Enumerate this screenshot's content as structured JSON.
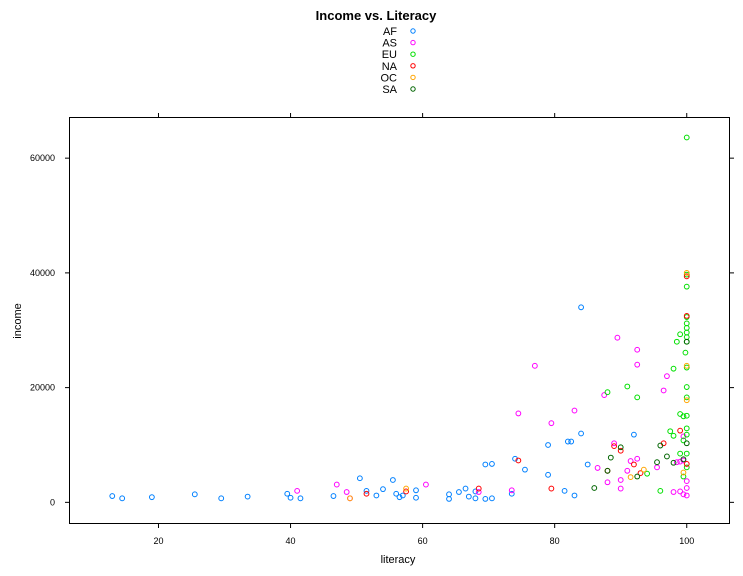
{
  "chart_data": {
    "type": "scatter",
    "title": "Income vs. Literacy",
    "xlabel": "literacy",
    "ylabel": "income",
    "xlim": [
      6.6,
      106.4
    ],
    "ylim": [
      -3600,
      67000
    ],
    "xticks": [
      20,
      40,
      60,
      80,
      100
    ],
    "yticks": [
      0,
      20000,
      40000,
      60000
    ],
    "grid": false,
    "legend_position": "top-center",
    "series": [
      {
        "name": "AF",
        "color": "#0080ff",
        "points": [
          [
            13,
            1100
          ],
          [
            14.5,
            700
          ],
          [
            19,
            900
          ],
          [
            25.5,
            1400
          ],
          [
            29.5,
            700
          ],
          [
            33.5,
            1000
          ],
          [
            39.5,
            1500
          ],
          [
            40,
            800
          ],
          [
            41.5,
            700
          ],
          [
            46.5,
            1100
          ],
          [
            50.5,
            4200
          ],
          [
            51.5,
            2000
          ],
          [
            53,
            1200
          ],
          [
            54,
            2300
          ],
          [
            55.5,
            3900
          ],
          [
            56,
            1500
          ],
          [
            56.5,
            900
          ],
          [
            57,
            1200
          ],
          [
            59,
            800
          ],
          [
            59,
            2100
          ],
          [
            64,
            600
          ],
          [
            64,
            1400
          ],
          [
            65.5,
            1800
          ],
          [
            66.5,
            2400
          ],
          [
            67,
            1000
          ],
          [
            68,
            700
          ],
          [
            68,
            1900
          ],
          [
            69.5,
            600
          ],
          [
            69.5,
            6600
          ],
          [
            70.5,
            6700
          ],
          [
            70.5,
            700
          ],
          [
            73.5,
            1500
          ],
          [
            74,
            7600
          ],
          [
            75.5,
            5700
          ],
          [
            79,
            4800
          ],
          [
            79,
            10000
          ],
          [
            81.5,
            2000
          ],
          [
            82,
            10600
          ],
          [
            82.5,
            10600
          ],
          [
            83,
            1200
          ],
          [
            84,
            12000
          ],
          [
            84,
            34000
          ],
          [
            85,
            6600
          ],
          [
            92,
            11800
          ]
        ]
      },
      {
        "name": "AS",
        "color": "#ff00ff",
        "points": [
          [
            41,
            2000
          ],
          [
            47,
            3100
          ],
          [
            48.5,
            1800
          ],
          [
            49,
            700
          ],
          [
            60.5,
            3100
          ],
          [
            68.5,
            1800
          ],
          [
            73.5,
            2100
          ],
          [
            74.5,
            15500
          ],
          [
            77,
            23800
          ],
          [
            79.5,
            13800
          ],
          [
            83,
            16000
          ],
          [
            86.5,
            6000
          ],
          [
            87.5,
            18700
          ],
          [
            89.5,
            28700
          ],
          [
            92.5,
            26600
          ],
          [
            92.5,
            24000
          ],
          [
            88,
            3500
          ],
          [
            89,
            10300
          ],
          [
            90,
            3900
          ],
          [
            90,
            2400
          ],
          [
            91,
            5500
          ],
          [
            91.5,
            7200
          ],
          [
            92.5,
            7600
          ],
          [
            95.5,
            6100
          ],
          [
            96.5,
            19500
          ],
          [
            97,
            22000
          ],
          [
            98,
            1800
          ],
          [
            98.5,
            7000
          ],
          [
            99,
            1900
          ],
          [
            99,
            7100
          ],
          [
            99.5,
            11500
          ],
          [
            99.5,
            1400
          ],
          [
            99.5,
            7300
          ],
          [
            100,
            1200
          ],
          [
            100,
            2500
          ],
          [
            100,
            3700
          ]
        ]
      },
      {
        "name": "EU",
        "color": "#00e000",
        "points": [
          [
            88,
            19200
          ],
          [
            91,
            20200
          ],
          [
            92.5,
            18300
          ],
          [
            97.5,
            12400
          ],
          [
            98,
            23300
          ],
          [
            98.5,
            28000
          ],
          [
            99,
            8500
          ],
          [
            99,
            29300
          ],
          [
            99,
            15400
          ],
          [
            99.5,
            15000
          ],
          [
            99.5,
            4500
          ],
          [
            99.5,
            10800
          ],
          [
            100,
            8500
          ],
          [
            100,
            6100
          ],
          [
            100,
            11800
          ],
          [
            100,
            12900
          ],
          [
            100,
            15100
          ],
          [
            100,
            18300
          ],
          [
            100,
            20100
          ],
          [
            100,
            23500
          ],
          [
            100,
            28000
          ],
          [
            100,
            28800
          ],
          [
            100,
            29600
          ],
          [
            100,
            30400
          ],
          [
            100,
            31200
          ],
          [
            100,
            32300
          ],
          [
            100,
            37600
          ],
          [
            100,
            39700
          ],
          [
            100,
            63600
          ],
          [
            99.8,
            26100
          ],
          [
            96,
            2000
          ],
          [
            98,
            11600
          ],
          [
            94,
            5000
          ]
        ]
      },
      {
        "name": "NA",
        "color": "#ff0000",
        "points": [
          [
            51.5,
            1500
          ],
          [
            57.5,
            1900
          ],
          [
            68.5,
            2400
          ],
          [
            74.5,
            7300
          ],
          [
            79.5,
            2400
          ],
          [
            88,
            5500
          ],
          [
            89,
            9800
          ],
          [
            90,
            9000
          ],
          [
            92,
            6600
          ],
          [
            93,
            5100
          ],
          [
            96.5,
            10300
          ],
          [
            99,
            12500
          ],
          [
            100,
            6700
          ],
          [
            100,
            39400
          ],
          [
            100,
            32500
          ]
        ]
      },
      {
        "name": "OC",
        "color": "#ffa500",
        "points": [
          [
            49,
            700
          ],
          [
            57.5,
            2400
          ],
          [
            91.5,
            4400
          ],
          [
            93.5,
            5700
          ],
          [
            99.5,
            5200
          ],
          [
            100,
            17800
          ],
          [
            100,
            23800
          ],
          [
            100,
            40000
          ]
        ]
      },
      {
        "name": "SA",
        "color": "#006400",
        "points": [
          [
            86,
            2500
          ],
          [
            88,
            5500
          ],
          [
            88.5,
            7800
          ],
          [
            90,
            9600
          ],
          [
            92.5,
            4500
          ],
          [
            95.5,
            7000
          ],
          [
            97,
            8000
          ],
          [
            99.5,
            7500
          ],
          [
            96,
            9900
          ],
          [
            98,
            6900
          ],
          [
            100,
            28000
          ],
          [
            100,
            10300
          ]
        ]
      }
    ]
  }
}
